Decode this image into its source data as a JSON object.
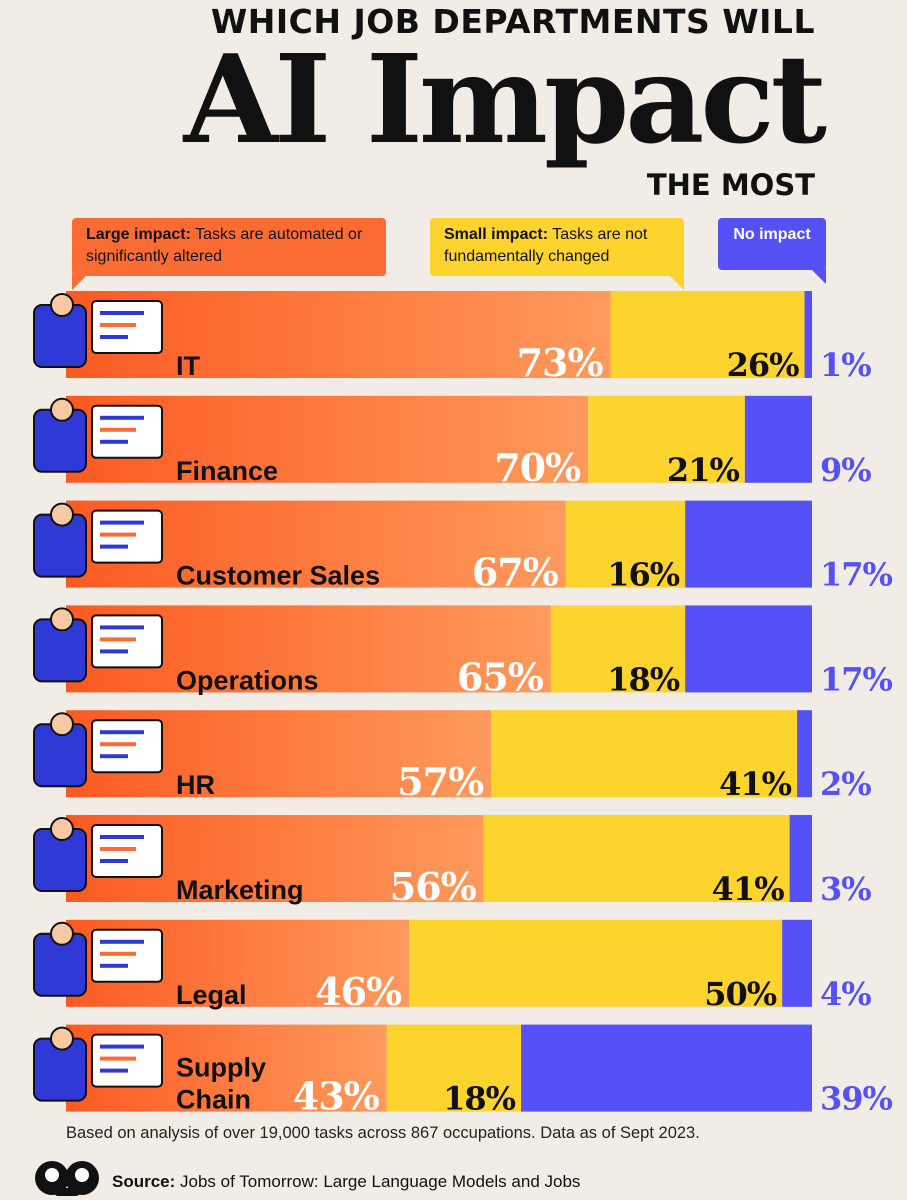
{
  "header": {
    "line1": "WHICH JOB DEPARTMENTS WILL",
    "line2": "AI Impact",
    "line3": "THE MOST"
  },
  "legend": {
    "large_title": "Large impact:",
    "large_text": " Tasks are automated or significantly altered",
    "small_title": "Small impact:",
    "small_text": " Tasks are not fundamentally changed",
    "none_title": "No impact"
  },
  "colors": {
    "large": "#fb6c35",
    "large_light": "#ff9a5c",
    "small": "#fdd32e",
    "none": "#5551f7",
    "background": "#f1ede6"
  },
  "chart_data": {
    "type": "bar",
    "orientation": "horizontal",
    "stacked": true,
    "categories": [
      "IT",
      "Finance",
      "Customer Sales",
      "Operations",
      "HR",
      "Marketing",
      "Legal",
      "Supply Chain"
    ],
    "series": [
      {
        "name": "Large impact",
        "values": [
          73,
          70,
          67,
          65,
          57,
          56,
          46,
          43
        ]
      },
      {
        "name": "Small impact",
        "values": [
          26,
          21,
          16,
          18,
          41,
          41,
          50,
          18
        ]
      },
      {
        "name": "No impact",
        "values": [
          1,
          9,
          17,
          17,
          2,
          3,
          4,
          39
        ]
      }
    ],
    "value_suffix": "%"
  },
  "footnote": "Based on analysis of over 19,000 tasks across 867 occupations. Data as of Sept 2023.",
  "source": {
    "label": "Source:",
    "text": " Jobs of Tomorrow: Large Language Models and Jobs"
  },
  "icons": [
    "it-worker-icon",
    "finance-worker-icon",
    "customer-sales-icon",
    "operations-worker-icon",
    "hr-worker-icon",
    "marketing-worker-icon",
    "legal-worker-icon",
    "supply-chain-icon",
    "logo-icon"
  ]
}
